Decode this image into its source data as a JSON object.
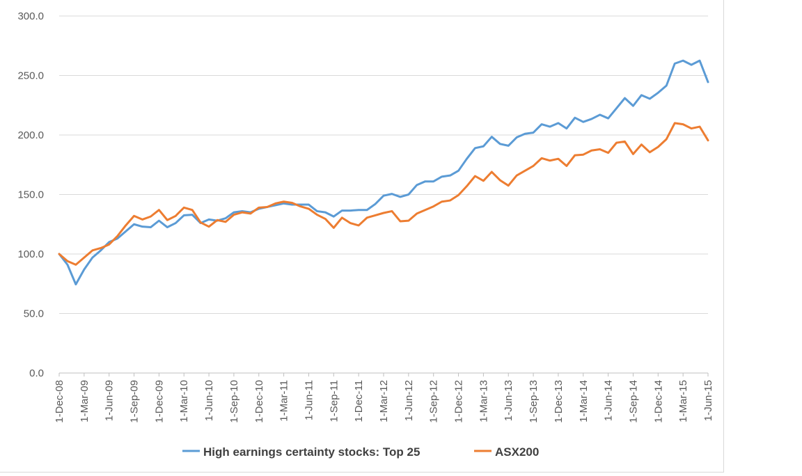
{
  "chart_data": {
    "type": "line",
    "title": "",
    "xlabel": "",
    "ylabel": "",
    "ylim": [
      0,
      300
    ],
    "yticks": [
      0,
      50,
      100,
      150,
      200,
      250,
      300
    ],
    "ytick_labels": [
      "0.0",
      "50.0",
      "100.0",
      "150.0",
      "200.0",
      "250.0",
      "300.0"
    ],
    "grid": "horizontal",
    "legend": "bottom",
    "x": [
      "2008-12",
      "2009-01",
      "2009-02",
      "2009-03",
      "2009-04",
      "2009-05",
      "2009-06",
      "2009-07",
      "2009-08",
      "2009-09",
      "2009-10",
      "2009-11",
      "2009-12",
      "2010-01",
      "2010-02",
      "2010-03",
      "2010-04",
      "2010-05",
      "2010-06",
      "2010-07",
      "2010-08",
      "2010-09",
      "2010-10",
      "2010-11",
      "2010-12",
      "2011-01",
      "2011-02",
      "2011-03",
      "2011-04",
      "2011-05",
      "2011-06",
      "2011-07",
      "2011-08",
      "2011-09",
      "2011-10",
      "2011-11",
      "2011-12",
      "2012-01",
      "2012-02",
      "2012-03",
      "2012-04",
      "2012-05",
      "2012-06",
      "2012-07",
      "2012-08",
      "2012-09",
      "2012-10",
      "2012-11",
      "2012-12",
      "2013-01",
      "2013-02",
      "2013-03",
      "2013-04",
      "2013-05",
      "2013-06",
      "2013-07",
      "2013-08",
      "2013-09",
      "2013-10",
      "2013-11",
      "2013-12",
      "2014-01",
      "2014-02",
      "2014-03",
      "2014-04",
      "2014-05",
      "2014-06",
      "2014-07",
      "2014-08",
      "2014-09",
      "2014-10",
      "2014-11",
      "2014-12",
      "2015-01",
      "2015-02",
      "2015-03",
      "2015-04",
      "2015-05",
      "2015-06"
    ],
    "xtick_labels": [
      "1-Dec-08",
      "1-Mar-09",
      "1-Jun-09",
      "1-Sep-09",
      "1-Dec-09",
      "1-Mar-10",
      "1-Jun-10",
      "1-Sep-10",
      "1-Dec-10",
      "1-Mar-11",
      "1-Jun-11",
      "1-Sep-11",
      "1-Dec-11",
      "1-Mar-12",
      "1-Jun-12",
      "1-Sep-12",
      "1-Dec-12",
      "1-Mar-13",
      "1-Jun-13",
      "1-Sep-13",
      "1-Dec-13",
      "1-Mar-14",
      "1-Jun-14",
      "1-Sep-14",
      "1-Dec-14",
      "1-Mar-15",
      "1-Jun-15"
    ],
    "series": [
      {
        "name": "High earnings certainty stocks: Top 25",
        "color": "#5b9bd5",
        "values": [
          100,
          91,
          74.5,
          87,
          97,
          103,
          110,
          113,
          119,
          125,
          123,
          122.5,
          128,
          122.5,
          126,
          132.5,
          133,
          126,
          129,
          128,
          130,
          135,
          136,
          135,
          138,
          139.5,
          141,
          142.5,
          141.5,
          141.5,
          141.5,
          136,
          135,
          131.5,
          136.5,
          136.5,
          137,
          137,
          142,
          149,
          150.5,
          148,
          150,
          158,
          161,
          161,
          165,
          166,
          170,
          180,
          189,
          190.5,
          198.5,
          192.5,
          191,
          198,
          201,
          202,
          209,
          207,
          210,
          205.5,
          214.5,
          211,
          213.5,
          217,
          214,
          222.5,
          231,
          224.5,
          233.5,
          230.5,
          235.5,
          241.5,
          260,
          262.5,
          259,
          262.5,
          244.5
        ]
      },
      {
        "name": "ASX200",
        "color": "#ed7d31",
        "values": [
          100,
          94,
          91,
          97,
          103,
          105,
          108,
          115,
          124,
          132,
          129,
          131.5,
          137,
          128.5,
          132,
          139,
          137,
          126.5,
          123,
          128.5,
          127,
          133,
          135,
          134,
          139,
          139.5,
          142.5,
          144,
          143,
          140,
          138,
          133,
          129.5,
          122,
          130.5,
          126,
          124,
          130.5,
          132.5,
          134.5,
          136,
          127.5,
          128,
          134,
          137,
          140,
          144,
          145,
          149.5,
          157,
          165.5,
          161.5,
          169,
          162,
          157.5,
          166,
          170,
          174,
          180.5,
          178.5,
          180,
          174,
          183,
          183.5,
          187,
          188,
          185,
          193.5,
          194.5,
          184,
          192,
          185.5,
          190,
          196.5,
          210,
          209,
          205.5,
          207,
          195.5
        ]
      }
    ]
  }
}
